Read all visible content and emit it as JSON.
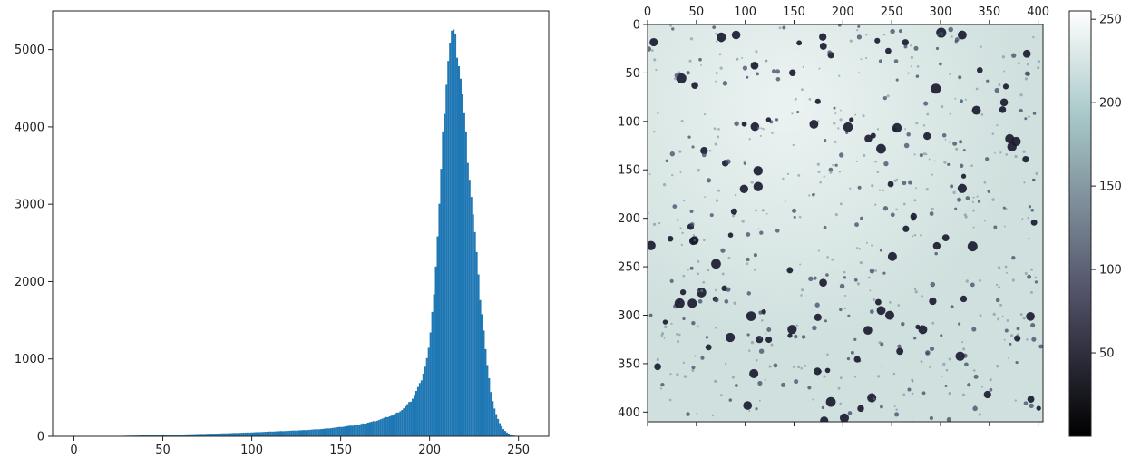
{
  "chart_data": [
    {
      "type": "bar",
      "title": "",
      "xlabel": "",
      "ylabel": "",
      "xlim": [
        -12,
        267
      ],
      "ylim": [
        0,
        5500
      ],
      "xticks": [
        0,
        50,
        100,
        150,
        200,
        250
      ],
      "yticks": [
        0,
        1000,
        2000,
        3000,
        4000,
        5000
      ],
      "color": "#1f77b4",
      "bin_start": 0,
      "bin_width": 1,
      "bin_x_range": [
        20,
        249
      ],
      "anchor_points": [
        [
          20,
          2
        ],
        [
          30,
          8
        ],
        [
          40,
          12
        ],
        [
          50,
          18
        ],
        [
          60,
          22
        ],
        [
          70,
          30
        ],
        [
          80,
          35
        ],
        [
          90,
          42
        ],
        [
          100,
          50
        ],
        [
          110,
          60
        ],
        [
          120,
          70
        ],
        [
          130,
          80
        ],
        [
          140,
          95
        ],
        [
          150,
          120
        ],
        [
          160,
          150
        ],
        [
          170,
          200
        ],
        [
          180,
          280
        ],
        [
          185,
          350
        ],
        [
          190,
          470
        ],
        [
          195,
          700
        ],
        [
          198,
          950
        ],
        [
          200,
          1200
        ],
        [
          202,
          1700
        ],
        [
          204,
          2400
        ],
        [
          206,
          3200
        ],
        [
          208,
          4100
        ],
        [
          210,
          4800
        ],
        [
          212,
          5200
        ],
        [
          213,
          5230
        ],
        [
          214,
          5150
        ],
        [
          216,
          4950
        ],
        [
          218,
          4550
        ],
        [
          220,
          4000
        ],
        [
          222,
          3500
        ],
        [
          224,
          3000
        ],
        [
          226,
          2500
        ],
        [
          228,
          1900
        ],
        [
          230,
          1500
        ],
        [
          232,
          1000
        ],
        [
          234,
          650
        ],
        [
          236,
          400
        ],
        [
          238,
          250
        ],
        [
          240,
          140
        ],
        [
          242,
          80
        ],
        [
          244,
          40
        ],
        [
          246,
          20
        ],
        [
          248,
          6
        ],
        [
          249,
          0
        ]
      ]
    },
    {
      "type": "heatmap",
      "title": "",
      "xlabel": "",
      "ylabel": "",
      "xlim": [
        0,
        405
      ],
      "ylim": [
        410,
        0
      ],
      "xticks": [
        0,
        50,
        100,
        150,
        200,
        250,
        300,
        350,
        400
      ],
      "yticks": [
        0,
        50,
        100,
        150,
        200,
        250,
        300,
        350,
        400
      ],
      "x_axis_position": "top",
      "background_value": 215,
      "colormap": "bone",
      "colorbar": {
        "range": [
          0,
          255
        ],
        "ticks": [
          50,
          100,
          150,
          200,
          250
        ],
        "colors": [
          "#000000",
          "#505068",
          "#a7c7c7",
          "#ffffff"
        ]
      }
    }
  ]
}
